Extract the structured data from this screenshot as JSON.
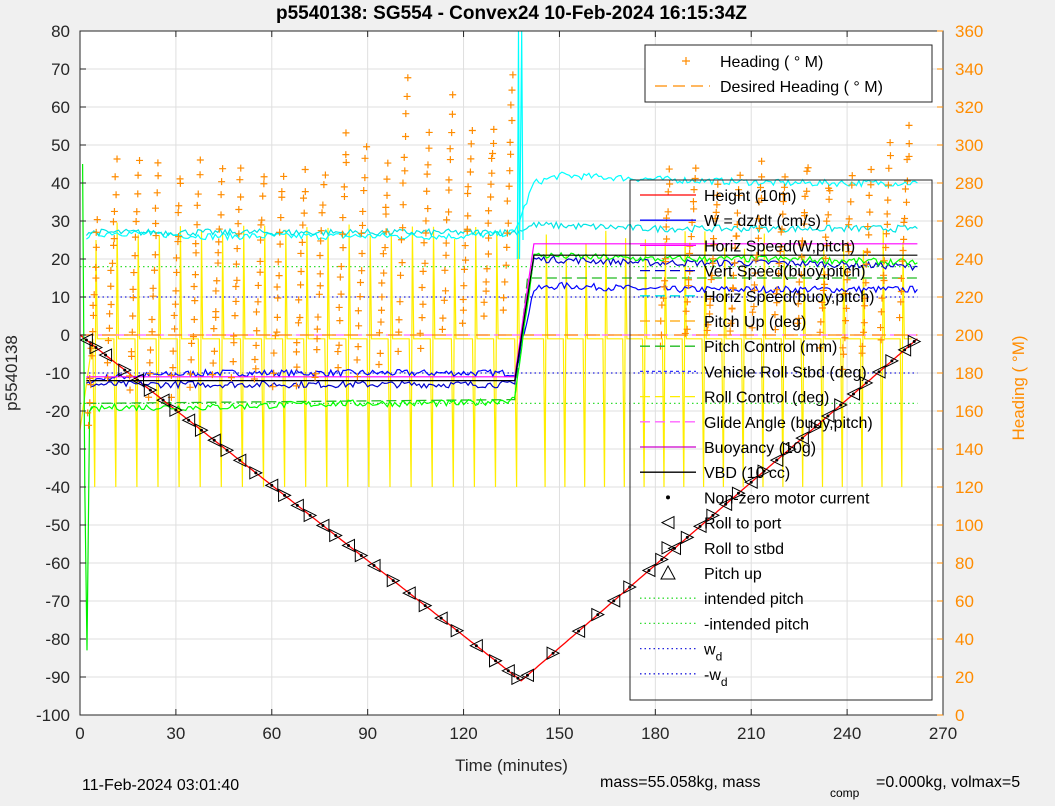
{
  "chart_data": {
    "type": "line",
    "title": "p5540138: SG554 - Convex24 10-Feb-2024 16:15:34Z",
    "xlabel": "Time (minutes)",
    "ylabel_left": "p5540138",
    "ylabel_right": "Heading (  °M)",
    "xlim": [
      0,
      270
    ],
    "ylim_left": [
      -100,
      80
    ],
    "ylim_right": [
      0,
      360
    ],
    "x_ticks": [
      "0",
      "30",
      "60",
      "90",
      "120",
      "150",
      "180",
      "210",
      "240",
      "270"
    ],
    "y_ticks_left": [
      "80",
      "70",
      "60",
      "50",
      "40",
      "30",
      "20",
      "10",
      "0",
      "-10",
      "-20",
      "-30",
      "-40",
      "-50",
      "-60",
      "-70",
      "-80",
      "-90",
      "-100"
    ],
    "y_ticks_right": [
      "360",
      "340",
      "320",
      "300",
      "280",
      "260",
      "240",
      "220",
      "200",
      "180",
      "160",
      "140",
      "120",
      "100",
      "80",
      "60",
      "40",
      "20",
      "0"
    ],
    "grid": true,
    "legend_top": {
      "placement": "top-right",
      "entries": [
        "Heading (  ° M)",
        "Desired Heading (    ° M)"
      ]
    },
    "legend_main": {
      "placement": "right",
      "entries": [
        "Height (10m)",
        "W = dz/dt (cm/s)",
        "Horiz Speed(W,pitch)",
        "Vert Speed(buoy,pitch)",
        "Horiz Speed(buoy,pitch)",
        "Pitch Up (deg)",
        "Pitch Control (mm)",
        "Vehicle Roll Stbd (deg)",
        "Roll Control (deg)",
        "Glide Angle (buoy,pitch)",
        "Buoyancy (10g)",
        "VBD (10 cc)",
        "Non-zero motor current",
        "Roll to port",
        "Roll to stbd",
        "Pitch up",
        "intended pitch",
        "-intended pitch",
        "w_d",
        "-w_d"
      ]
    },
    "series": [
      {
        "name": "Height (10m)",
        "color": "#ff0000",
        "x": [
          0,
          138,
          262
        ],
        "y": [
          0,
          -91,
          -1
        ]
      },
      {
        "name": "W = dz/dt (cm/s)",
        "color": "#0000ff",
        "x": [
          2,
          10,
          40,
          80,
          120,
          136,
          142,
          150,
          180,
          220,
          262
        ],
        "y": [
          -12,
          -11,
          -10,
          -10,
          -10,
          -10,
          12,
          13,
          12,
          12,
          12
        ]
      },
      {
        "name": "Horiz Speed(W,pitch)",
        "color": "#00ffff",
        "x": [
          2,
          10,
          40,
          80,
          120,
          136,
          142,
          150,
          180,
          220,
          262
        ],
        "y": [
          26,
          27,
          26,
          26,
          26,
          27,
          40,
          42,
          41,
          40,
          40
        ]
      },
      {
        "name": "Vert Speed(buoy,pitch)",
        "color": "#0000cc",
        "x": [
          2,
          40,
          80,
          136,
          142,
          180,
          220,
          262
        ],
        "y": [
          -13,
          -13,
          -13,
          -13,
          20,
          19,
          19,
          18
        ]
      },
      {
        "name": "Horiz Speed(buoy,pitch)",
        "color": "#00e5e5",
        "x": [
          2,
          40,
          80,
          136,
          142,
          180,
          220,
          262
        ],
        "y": [
          27,
          27,
          27,
          27,
          29,
          28,
          28,
          28
        ]
      },
      {
        "name": "Pitch Up (deg)",
        "color": "#00ff00",
        "x": [
          2,
          10,
          40,
          80,
          120,
          136,
          142,
          180,
          220,
          262
        ],
        "y": [
          -20,
          -19,
          -19,
          -18,
          -18,
          -17,
          21,
          20,
          20,
          19
        ]
      },
      {
        "name": "Buoyancy (10g)",
        "color": "#ff00ff",
        "x": [
          2,
          136,
          142,
          262
        ],
        "y": [
          -11,
          -11,
          24,
          24
        ]
      },
      {
        "name": "VBD (10 cc)",
        "color": "#000000",
        "x": [
          2,
          136,
          142,
          262
        ],
        "y": [
          -12,
          -12,
          21,
          21
        ]
      },
      {
        "name": "Desired Heading (    ° M)",
        "color": "#ff8c00",
        "x": [
          0,
          262
        ],
        "y": [
          200,
          200
        ]
      }
    ],
    "heading_groups": [
      [
        4,
        150,
        260
      ],
      [
        10,
        180,
        290
      ],
      [
        17,
        170,
        290
      ],
      [
        23,
        170,
        290
      ],
      [
        30,
        170,
        285
      ],
      [
        36,
        170,
        290
      ],
      [
        43,
        180,
        285
      ],
      [
        49,
        180,
        290
      ],
      [
        56,
        175,
        285
      ],
      [
        62,
        175,
        285
      ],
      [
        69,
        175,
        285
      ],
      [
        75,
        175,
        285
      ],
      [
        82,
        180,
        305
      ],
      [
        88,
        180,
        300
      ],
      [
        95,
        185,
        290
      ],
      [
        101,
        190,
        335
      ],
      [
        108,
        195,
        305
      ],
      [
        115,
        200,
        325
      ],
      [
        121,
        205,
        305
      ],
      [
        128,
        210,
        310
      ],
      [
        134,
        212,
        335
      ],
      [
        183,
        195,
        285
      ],
      [
        191,
        200,
        290
      ],
      [
        198,
        200,
        280
      ],
      [
        205,
        200,
        282
      ],
      [
        212,
        205,
        290
      ],
      [
        219,
        205,
        285
      ],
      [
        226,
        205,
        290
      ],
      [
        233,
        195,
        280
      ],
      [
        240,
        180,
        285
      ],
      [
        246,
        190,
        285
      ],
      [
        252,
        200,
        300
      ],
      [
        258,
        210,
        310
      ]
    ],
    "markers_x": [
      2,
      5,
      8,
      14,
      18,
      22,
      26,
      30,
      34,
      38,
      42,
      46,
      50,
      55,
      60,
      64,
      68,
      72,
      76,
      80,
      84,
      88,
      92,
      98,
      103,
      108,
      113,
      118,
      124,
      130,
      134,
      137,
      140,
      148,
      156,
      162,
      167,
      172,
      178,
      182,
      186,
      190,
      194,
      198,
      202,
      206,
      210,
      214,
      218,
      222,
      226,
      230,
      234,
      238,
      242,
      246,
      250,
      254,
      258,
      261
    ],
    "intended_pitch": 18,
    "w_d": 10,
    "footer_left": "11-Feb-2024 03:01:40",
    "footer_right": "mass=55.058kg, mass",
    "footer_sub": "comp",
    "footer_right2": "=0.000kg, volmax=5"
  }
}
